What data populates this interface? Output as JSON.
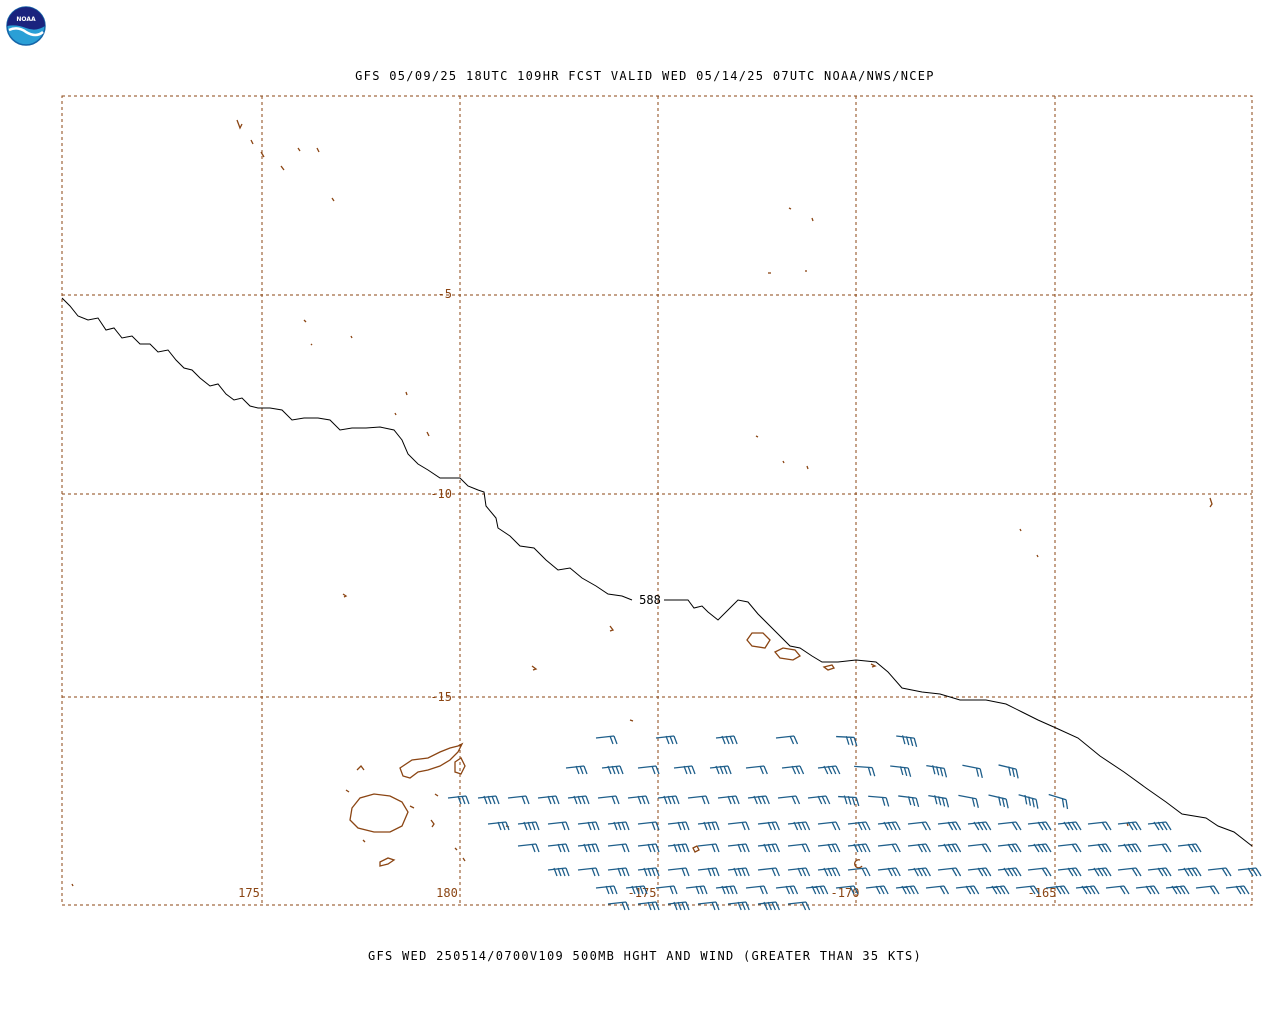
{
  "header": {
    "title": "GFS 05/09/25 18UTC 109HR FCST VALID WED 05/14/25 07UTC NOAA/NWS/NCEP",
    "logo_text": "NOAA"
  },
  "footer": {
    "subtitle": "GFS WED 250514/0700V109 500MB HGHT AND WIND (GREATER THAN 35 KTS)"
  },
  "map": {
    "grid_color": "#8b4513",
    "coast_color": "#8b4513",
    "contour_color": "#000000",
    "wind_barb_color": "#1f5f8b",
    "lat_labels": [
      "-5",
      "-10",
      "-15"
    ],
    "lon_labels": [
      "175",
      "180",
      "-175",
      "-170",
      "-165"
    ],
    "contours": [
      {
        "value": "588",
        "label": "588"
      }
    ]
  }
}
